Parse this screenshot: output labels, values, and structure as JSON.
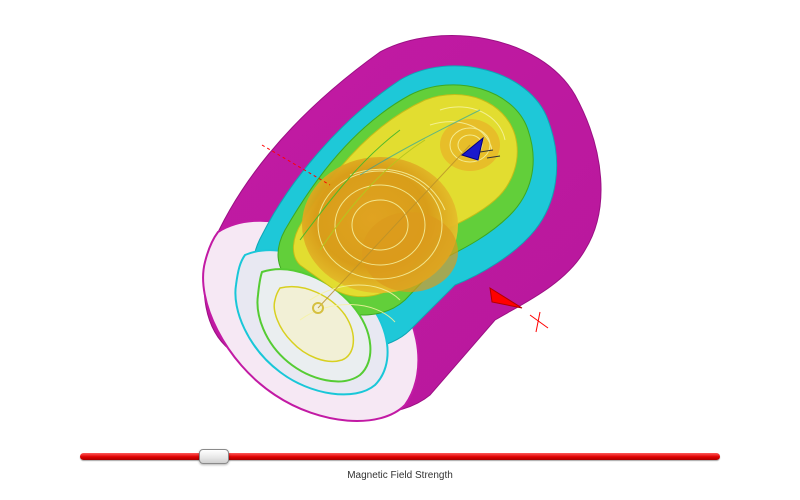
{
  "viewer": {
    "scene": "magnetic-field-isosurface",
    "colors": {
      "outer_shell": "#c61aa6",
      "cyan_layer": "#19c7d8",
      "green_layer": "#55cc33",
      "yellow_layer": "#e8e02a",
      "core": "#d99a1a",
      "axis_marker": "#ff0000",
      "probe": "#1a1acc"
    }
  },
  "slider": {
    "label": "Magnetic Field Strength",
    "value_fraction": 0.21,
    "track_color": "#e00000"
  }
}
